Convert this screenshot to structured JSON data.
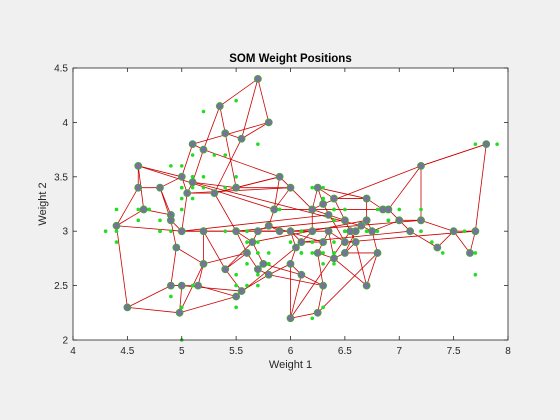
{
  "chart_data": {
    "type": "scatter",
    "title": "SOM Weight Positions",
    "xlabel": "Weight 1",
    "ylabel": "Weight 2",
    "xlim": [
      4,
      8
    ],
    "ylim": [
      2,
      4.5
    ],
    "xticks": [
      "4",
      "4.5",
      "5",
      "5.5",
      "6",
      "6.5",
      "7",
      "7.5",
      "8"
    ],
    "yticks": [
      "2",
      "2.5",
      "3",
      "3.5",
      "4",
      "4.5"
    ],
    "grid": false,
    "colors": {
      "background": "#f0f0f0",
      "axes_bg": "#ffffff",
      "edges": "#cc0000",
      "neurons_fill": "#7a6fa0",
      "neurons_edge": "#4aa04a",
      "inputs": "#22dd22"
    },
    "neurons": [
      [
        5.7,
        4.4
      ],
      [
        5.8,
        4.0
      ],
      [
        5.35,
        4.15
      ],
      [
        5.1,
        3.8
      ],
      [
        5.4,
        3.9
      ],
      [
        5.55,
        3.85
      ],
      [
        5.2,
        3.75
      ],
      [
        4.6,
        3.6
      ],
      [
        5.0,
        3.5
      ],
      [
        5.1,
        3.45
      ],
      [
        5.5,
        3.4
      ],
      [
        5.3,
        3.35
      ],
      [
        5.05,
        3.35
      ],
      [
        4.6,
        3.4
      ],
      [
        4.8,
        3.4
      ],
      [
        4.65,
        3.2
      ],
      [
        4.9,
        3.15
      ],
      [
        4.4,
        3.05
      ],
      [
        4.9,
        3.1
      ],
      [
        5.0,
        3.0
      ],
      [
        4.95,
        2.85
      ],
      [
        5.2,
        3.0
      ],
      [
        5.2,
        2.7
      ],
      [
        5.15,
        2.5
      ],
      [
        4.9,
        2.5
      ],
      [
        5.0,
        2.5
      ],
      [
        4.5,
        2.3
      ],
      [
        4.98,
        2.25
      ],
      [
        5.5,
        2.4
      ],
      [
        5.55,
        2.45
      ],
      [
        5.8,
        2.6
      ],
      [
        5.7,
        2.65
      ],
      [
        5.75,
        2.7
      ],
      [
        5.6,
        2.8
      ],
      [
        5.4,
        2.65
      ],
      [
        5.65,
        2.9
      ],
      [
        5.5,
        3.0
      ],
      [
        5.7,
        3.0
      ],
      [
        5.9,
        3.0
      ],
      [
        5.8,
        3.05
      ],
      [
        5.85,
        3.2
      ],
      [
        6.0,
        3.4
      ],
      [
        5.9,
        3.5
      ],
      [
        6.0,
        3.0
      ],
      [
        6.1,
        2.9
      ],
      [
        6.05,
        2.85
      ],
      [
        6.0,
        2.7
      ],
      [
        6.1,
        2.6
      ],
      [
        6.0,
        2.2
      ],
      [
        6.25,
        2.25
      ],
      [
        6.3,
        2.5
      ],
      [
        6.25,
        2.8
      ],
      [
        6.3,
        2.9
      ],
      [
        6.4,
        2.75
      ],
      [
        6.35,
        3.0
      ],
      [
        6.5,
        2.9
      ],
      [
        6.3,
        3.25
      ],
      [
        6.2,
        3.2
      ],
      [
        6.25,
        3.4
      ],
      [
        6.35,
        3.15
      ],
      [
        6.5,
        3.1
      ],
      [
        6.55,
        3.0
      ],
      [
        6.6,
        2.9
      ],
      [
        6.65,
        3.05
      ],
      [
        6.5,
        2.8
      ],
      [
        6.7,
        3.3
      ],
      [
        6.7,
        3.1
      ],
      [
        6.75,
        3.0
      ],
      [
        6.8,
        2.8
      ],
      [
        6.85,
        3.2
      ],
      [
        6.9,
        3.2
      ],
      [
        7.0,
        3.1
      ],
      [
        7.2,
        3.1
      ],
      [
        7.1,
        3.0
      ],
      [
        7.2,
        3.6
      ],
      [
        7.35,
        2.85
      ],
      [
        7.5,
        3.0
      ],
      [
        7.7,
        3.0
      ],
      [
        7.65,
        2.8
      ],
      [
        7.8,
        3.8
      ],
      [
        6.7,
        2.5
      ],
      [
        6.4,
        3.3
      ],
      [
        6.6,
        3.0
      ],
      [
        6.2,
        3.0
      ]
    ],
    "inputs": [
      [
        5.1,
        3.5
      ],
      [
        4.9,
        3.0
      ],
      [
        4.7,
        3.2
      ],
      [
        4.6,
        3.1
      ],
      [
        5.0,
        3.6
      ],
      [
        5.4,
        3.9
      ],
      [
        4.6,
        3.4
      ],
      [
        5.0,
        3.4
      ],
      [
        4.4,
        2.9
      ],
      [
        4.9,
        3.1
      ],
      [
        5.4,
        3.7
      ],
      [
        4.8,
        3.4
      ],
      [
        4.8,
        3.0
      ],
      [
        4.3,
        3.0
      ],
      [
        5.8,
        4.0
      ],
      [
        5.7,
        4.4
      ],
      [
        5.4,
        3.9
      ],
      [
        5.1,
        3.5
      ],
      [
        5.7,
        3.8
      ],
      [
        5.1,
        3.8
      ],
      [
        5.4,
        3.4
      ],
      [
        5.1,
        3.7
      ],
      [
        4.6,
        3.6
      ],
      [
        5.1,
        3.3
      ],
      [
        4.8,
        3.4
      ],
      [
        5.0,
        3.0
      ],
      [
        5.0,
        3.4
      ],
      [
        5.2,
        3.5
      ],
      [
        5.2,
        3.4
      ],
      [
        4.7,
        3.2
      ],
      [
        4.8,
        3.1
      ],
      [
        5.4,
        3.4
      ],
      [
        5.2,
        4.1
      ],
      [
        5.5,
        4.2
      ],
      [
        4.9,
        3.1
      ],
      [
        5.0,
        3.2
      ],
      [
        5.5,
        3.5
      ],
      [
        4.9,
        3.6
      ],
      [
        4.4,
        3.0
      ],
      [
        5.1,
        3.4
      ],
      [
        5.0,
        3.5
      ],
      [
        4.5,
        2.3
      ],
      [
        4.4,
        3.2
      ],
      [
        5.0,
        3.5
      ],
      [
        5.1,
        3.8
      ],
      [
        4.8,
        3.0
      ],
      [
        5.1,
        3.8
      ],
      [
        4.6,
        3.2
      ],
      [
        5.3,
        3.7
      ],
      [
        5.0,
        3.3
      ],
      [
        7.0,
        3.2
      ],
      [
        6.4,
        3.2
      ],
      [
        6.9,
        3.1
      ],
      [
        5.5,
        2.3
      ],
      [
        6.5,
        2.8
      ],
      [
        5.7,
        2.8
      ],
      [
        6.3,
        3.3
      ],
      [
        4.9,
        2.4
      ],
      [
        6.6,
        2.9
      ],
      [
        5.2,
        2.7
      ],
      [
        5.0,
        2.0
      ],
      [
        5.9,
        3.0
      ],
      [
        6.0,
        2.2
      ],
      [
        6.1,
        2.9
      ],
      [
        5.6,
        2.9
      ],
      [
        6.7,
        3.1
      ],
      [
        5.6,
        3.0
      ],
      [
        5.8,
        2.7
      ],
      [
        6.2,
        2.2
      ],
      [
        5.6,
        2.5
      ],
      [
        5.9,
        3.2
      ],
      [
        6.1,
        2.8
      ],
      [
        6.3,
        2.5
      ],
      [
        6.1,
        2.8
      ],
      [
        6.4,
        2.9
      ],
      [
        6.6,
        3.0
      ],
      [
        6.8,
        2.8
      ],
      [
        6.7,
        3.0
      ],
      [
        6.0,
        2.9
      ],
      [
        5.7,
        2.6
      ],
      [
        5.5,
        2.4
      ],
      [
        5.5,
        2.4
      ],
      [
        5.8,
        2.7
      ],
      [
        6.0,
        2.7
      ],
      [
        5.4,
        3.0
      ],
      [
        6.0,
        3.4
      ],
      [
        6.7,
        3.1
      ],
      [
        6.3,
        2.3
      ],
      [
        5.6,
        3.0
      ],
      [
        5.5,
        2.5
      ],
      [
        5.5,
        2.6
      ],
      [
        6.1,
        3.0
      ],
      [
        5.8,
        2.6
      ],
      [
        5.0,
        2.3
      ],
      [
        5.6,
        2.7
      ],
      [
        5.7,
        3.0
      ],
      [
        5.7,
        2.9
      ],
      [
        6.2,
        2.9
      ],
      [
        5.1,
        2.5
      ],
      [
        5.7,
        2.8
      ],
      [
        6.3,
        3.3
      ],
      [
        5.8,
        2.7
      ],
      [
        7.1,
        3.0
      ],
      [
        6.3,
        2.9
      ],
      [
        6.5,
        3.0
      ],
      [
        7.6,
        3.0
      ],
      [
        4.9,
        2.5
      ],
      [
        7.3,
        2.9
      ],
      [
        6.7,
        2.5
      ],
      [
        7.2,
        3.6
      ],
      [
        6.5,
        3.2
      ],
      [
        6.4,
        2.7
      ],
      [
        6.8,
        3.0
      ],
      [
        5.7,
        2.5
      ],
      [
        5.8,
        2.8
      ],
      [
        6.4,
        3.2
      ],
      [
        6.5,
        3.0
      ],
      [
        7.7,
        3.8
      ],
      [
        7.7,
        2.6
      ],
      [
        6.0,
        2.2
      ],
      [
        6.9,
        3.2
      ],
      [
        5.6,
        2.8
      ],
      [
        7.7,
        2.8
      ],
      [
        6.3,
        2.7
      ],
      [
        6.7,
        3.3
      ],
      [
        7.2,
        3.2
      ],
      [
        6.2,
        2.8
      ],
      [
        6.1,
        3.0
      ],
      [
        6.4,
        2.8
      ],
      [
        7.2,
        3.0
      ],
      [
        7.4,
        2.8
      ],
      [
        7.9,
        3.8
      ],
      [
        6.4,
        2.8
      ],
      [
        6.3,
        2.8
      ],
      [
        6.1,
        2.6
      ],
      [
        7.7,
        3.0
      ],
      [
        6.3,
        3.4
      ],
      [
        6.4,
        3.1
      ],
      [
        6.0,
        3.0
      ],
      [
        6.9,
        3.1
      ],
      [
        6.7,
        3.1
      ],
      [
        6.9,
        3.1
      ],
      [
        5.8,
        2.7
      ],
      [
        6.8,
        3.2
      ],
      [
        6.7,
        3.3
      ],
      [
        6.7,
        3.0
      ],
      [
        6.3,
        2.5
      ],
      [
        6.5,
        3.0
      ],
      [
        6.2,
        3.4
      ],
      [
        5.9,
        3.0
      ]
    ],
    "edges": [
      [
        0,
        1
      ],
      [
        0,
        5
      ],
      [
        0,
        2
      ],
      [
        1,
        5
      ],
      [
        1,
        3
      ],
      [
        2,
        4
      ],
      [
        2,
        6
      ],
      [
        4,
        5
      ],
      [
        4,
        10
      ],
      [
        5,
        11
      ],
      [
        3,
        6
      ],
      [
        3,
        8
      ],
      [
        6,
        9
      ],
      [
        6,
        42
      ],
      [
        7,
        13
      ],
      [
        7,
        8
      ],
      [
        7,
        15
      ],
      [
        8,
        12
      ],
      [
        8,
        14
      ],
      [
        9,
        10
      ],
      [
        9,
        12
      ],
      [
        10,
        11
      ],
      [
        10,
        41
      ],
      [
        11,
        12
      ],
      [
        11,
        42
      ],
      [
        12,
        19
      ],
      [
        13,
        14
      ],
      [
        13,
        17
      ],
      [
        14,
        16
      ],
      [
        14,
        18
      ],
      [
        15,
        16
      ],
      [
        15,
        17
      ],
      [
        16,
        18
      ],
      [
        17,
        26
      ],
      [
        17,
        19
      ],
      [
        18,
        19
      ],
      [
        18,
        20
      ],
      [
        19,
        21
      ],
      [
        19,
        36
      ],
      [
        20,
        22
      ],
      [
        20,
        24
      ],
      [
        21,
        22
      ],
      [
        21,
        34
      ],
      [
        22,
        23
      ],
      [
        22,
        33
      ],
      [
        23,
        24
      ],
      [
        23,
        28
      ],
      [
        24,
        25
      ],
      [
        24,
        26
      ],
      [
        25,
        27
      ],
      [
        25,
        29
      ],
      [
        26,
        27
      ],
      [
        27,
        28
      ],
      [
        27,
        22
      ],
      [
        28,
        29
      ],
      [
        29,
        34
      ],
      [
        29,
        30
      ],
      [
        30,
        31
      ],
      [
        30,
        46
      ],
      [
        31,
        32
      ],
      [
        31,
        33
      ],
      [
        32,
        35
      ],
      [
        32,
        47
      ],
      [
        33,
        34
      ],
      [
        33,
        36
      ],
      [
        34,
        35
      ],
      [
        35,
        36
      ],
      [
        35,
        37
      ],
      [
        36,
        37
      ],
      [
        36,
        11
      ],
      [
        37,
        38
      ],
      [
        37,
        39
      ],
      [
        38,
        39
      ],
      [
        38,
        43
      ],
      [
        39,
        40
      ],
      [
        40,
        41
      ],
      [
        40,
        42
      ],
      [
        41,
        42
      ],
      [
        41,
        57
      ],
      [
        42,
        10
      ],
      [
        43,
        44
      ],
      [
        43,
        45
      ],
      [
        44,
        45
      ],
      [
        44,
        52
      ],
      [
        45,
        46
      ],
      [
        46,
        47
      ],
      [
        46,
        48
      ],
      [
        47,
        48
      ],
      [
        47,
        50
      ],
      [
        48,
        49
      ],
      [
        49,
        50
      ],
      [
        50,
        51
      ],
      [
        51,
        52
      ],
      [
        51,
        53
      ],
      [
        52,
        54
      ],
      [
        53,
        54
      ],
      [
        53,
        64
      ],
      [
        54,
        55
      ],
      [
        55,
        56
      ],
      [
        55,
        62
      ],
      [
        56,
        57
      ],
      [
        56,
        58
      ],
      [
        57,
        58
      ],
      [
        57,
        59
      ],
      [
        58,
        65
      ],
      [
        59,
        60
      ],
      [
        60,
        61
      ],
      [
        60,
        81
      ],
      [
        61,
        62
      ],
      [
        61,
        82
      ],
      [
        62,
        64
      ],
      [
        63,
        66
      ],
      [
        63,
        67
      ],
      [
        64,
        68
      ],
      [
        65,
        66
      ],
      [
        65,
        69
      ],
      [
        66,
        67
      ],
      [
        67,
        68
      ],
      [
        67,
        71
      ],
      [
        69,
        70
      ],
      [
        70,
        71
      ],
      [
        70,
        74
      ],
      [
        71,
        72
      ],
      [
        71,
        73
      ],
      [
        72,
        74
      ],
      [
        72,
        76
      ],
      [
        73,
        75
      ],
      [
        74,
        79
      ],
      [
        75,
        76
      ],
      [
        76,
        77
      ],
      [
        77,
        78
      ],
      [
        77,
        79
      ],
      [
        79,
        74
      ],
      [
        78,
        76
      ],
      [
        80,
        62
      ],
      [
        80,
        53
      ],
      [
        80,
        68
      ],
      [
        81,
        65
      ],
      [
        81,
        58
      ],
      [
        82,
        66
      ],
      [
        82,
        64
      ],
      [
        83,
        38
      ],
      [
        83,
        44
      ],
      [
        83,
        57
      ],
      [
        38,
        21
      ],
      [
        40,
        7
      ],
      [
        41,
        12
      ],
      [
        59,
        19
      ],
      [
        74,
        56
      ],
      [
        77,
        55
      ],
      [
        72,
        43
      ],
      [
        63,
        9
      ],
      [
        61,
        48
      ],
      [
        69,
        40
      ],
      [
        50,
        30
      ],
      [
        45,
        28
      ],
      [
        52,
        39
      ],
      [
        54,
        37
      ],
      [
        60,
        36
      ],
      [
        66,
        35
      ],
      [
        68,
        49
      ],
      [
        73,
        44
      ]
    ]
  }
}
